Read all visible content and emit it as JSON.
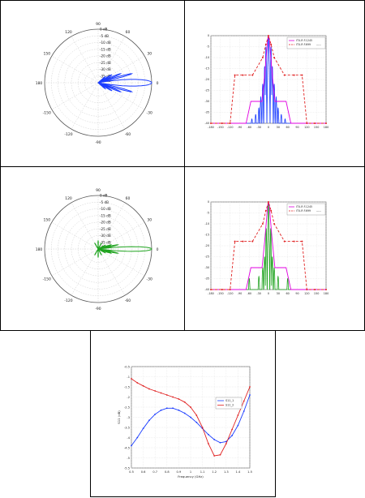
{
  "chart_data": [
    {
      "type": "polar",
      "color": "#1a3cff",
      "angle_labels": [
        "0",
        "30",
        "60",
        "90",
        "120",
        "150",
        "180",
        "-150",
        "-120",
        "-90",
        "-60",
        "-30"
      ],
      "radial_labels": [
        "0 dB",
        "-5 dB",
        "-10 dB",
        "-15 dB",
        "-20 dB",
        "-25 dB",
        "-30 dB",
        "-35 dB",
        "-40 dB"
      ],
      "rlim": [
        -40,
        0
      ],
      "pattern": {
        "main_lobe_halfwidth_deg": 10,
        "sidelobes": [
          {
            "angle": 15,
            "level": -14
          },
          {
            "angle": 22,
            "level": -22
          },
          {
            "angle": 30,
            "level": -28
          },
          {
            "angle": 40,
            "level": -33
          }
        ]
      }
    },
    {
      "type": "line",
      "color": "#1a3cff",
      "x_ticks": [
        "-180",
        "-150",
        "-120",
        "-90",
        "-60",
        "-30",
        "0",
        "30",
        "60",
        "90",
        "120",
        "150",
        "180"
      ],
      "y_ticks": [
        "0",
        "-5",
        "-10",
        "-15",
        "-20",
        "-25",
        "-30",
        "-35",
        "-40"
      ],
      "xlim": [
        -180,
        180
      ],
      "ylim": [
        -40,
        0
      ],
      "legend": [
        "ITU-R F.1245",
        "ITU-R F.699",
        "-----"
      ],
      "series": [
        {
          "name": "",
          "x": [
            -180,
            -70,
            -55,
            -20,
            -12,
            -6,
            -3,
            0,
            3,
            6,
            12,
            20,
            55,
            70,
            180
          ],
          "y": [
            -40,
            -40,
            -30,
            -30,
            -18,
            -8,
            -2,
            0,
            -2,
            -8,
            -18,
            -30,
            -30,
            -40,
            -40
          ]
        },
        {
          "name": "",
          "x": [
            -180,
            -145,
            -120,
            -105,
            -80,
            -50,
            -18,
            -8,
            0,
            8,
            18,
            50,
            80,
            105,
            120,
            145,
            180
          ],
          "y": [
            -40,
            -40,
            -40,
            -18,
            -18,
            -18,
            -10,
            -4,
            0,
            -4,
            -10,
            -18,
            -18,
            -18,
            -40,
            -40,
            -40
          ]
        }
      ],
      "pattern": {
        "main_halfwidth_deg": 5,
        "sidelobes": [
          {
            "x": 8,
            "level": -5
          },
          {
            "x": 12,
            "level": -14
          },
          {
            "x": 18,
            "level": -22
          },
          {
            "x": 24,
            "level": -28
          },
          {
            "x": 30,
            "level": -33
          },
          {
            "x": 40,
            "level": -36
          },
          {
            "x": 52,
            "level": -38
          }
        ]
      }
    },
    {
      "type": "polar",
      "color": "#1fa31f",
      "angle_labels": [
        "0",
        "30",
        "60",
        "90",
        "120",
        "150",
        "180",
        "-150",
        "-120",
        "-90",
        "-60",
        "-30"
      ],
      "radial_labels": [
        "0 dB",
        "-5 dB",
        "-10 dB",
        "-15 dB",
        "-20 dB",
        "-25 dB",
        "-30 dB",
        "-35 dB",
        "-40 dB"
      ],
      "rlim": [
        -40,
        0
      ],
      "pattern": {
        "main_lobe_halfwidth_deg": 7,
        "sidelobes": [
          {
            "angle": 12,
            "level": -25
          },
          {
            "angle": 18,
            "level": -30
          },
          {
            "angle": 28,
            "level": -34
          },
          {
            "angle": 60,
            "level": -35
          },
          {
            "angle": 90,
            "level": -34
          },
          {
            "angle": 120,
            "level": -35
          }
        ]
      }
    },
    {
      "type": "line",
      "color": "#1fa31f",
      "x_ticks": [
        "-180",
        "-150",
        "-120",
        "-90",
        "-60",
        "-30",
        "0",
        "30",
        "60",
        "90",
        "120",
        "150",
        "180"
      ],
      "y_ticks": [
        "0",
        "-5",
        "-10",
        "-15",
        "-20",
        "-25",
        "-30",
        "-35",
        "-40"
      ],
      "xlim": [
        -180,
        180
      ],
      "ylim": [
        -40,
        0
      ],
      "legend": [
        "ITU-R F.1245",
        "ITU-R F.699",
        "-----"
      ],
      "series": [
        {
          "name": "",
          "x": [
            -180,
            -70,
            -55,
            -20,
            -12,
            -6,
            -3,
            0,
            3,
            6,
            12,
            20,
            55,
            70,
            180
          ],
          "y": [
            -40,
            -40,
            -30,
            -30,
            -18,
            -8,
            -2,
            0,
            -2,
            -8,
            -18,
            -30,
            -30,
            -40,
            -40
          ]
        },
        {
          "name": "",
          "x": [
            -180,
            -145,
            -120,
            -105,
            -80,
            -50,
            -18,
            -8,
            0,
            8,
            18,
            50,
            80,
            105,
            120,
            145,
            180
          ],
          "y": [
            -40,
            -40,
            -40,
            -18,
            -18,
            -18,
            -10,
            -4,
            0,
            -4,
            -10,
            -18,
            -18,
            -18,
            -40,
            -40,
            -40
          ]
        }
      ],
      "pattern": {
        "main_halfwidth_deg": 4,
        "sidelobes": [
          {
            "x": 7,
            "level": -12
          },
          {
            "x": 12,
            "level": -25
          },
          {
            "x": 18,
            "level": -30
          },
          {
            "x": 30,
            "level": -34
          },
          {
            "x": 60,
            "level": -35
          },
          {
            "x": 100,
            "level": -36
          },
          {
            "x": 130,
            "level": -36
          }
        ]
      }
    },
    {
      "type": "line",
      "x_ticks": [
        "0.5",
        "0.6",
        "0.7",
        "0.8",
        "0.9",
        "1",
        "1.1",
        "1.2",
        "1.3",
        "1.4",
        "1.5"
      ],
      "y_ticks": [
        "-0.5",
        "-1",
        "-1.5",
        "-2",
        "-2.5",
        "-3",
        "-3.5",
        "-4",
        "-4.5",
        "-5",
        "-5.5"
      ],
      "xlim": [
        0.5,
        1.5
      ],
      "ylim": [
        -5.5,
        -0.5
      ],
      "xlabel": "Frequency (GHz)",
      "ylabel": "S11 (dB)",
      "legend": [
        "S11_1",
        "S11_2"
      ],
      "series": [
        {
          "name": "S11_1",
          "color": "#1a3cff",
          "x": [
            0.5,
            0.55,
            0.6,
            0.65,
            0.7,
            0.75,
            0.8,
            0.85,
            0.9,
            0.95,
            1.0,
            1.05,
            1.1,
            1.15,
            1.2,
            1.25,
            1.3,
            1.35,
            1.4,
            1.45,
            1.5
          ],
          "y": [
            -4.4,
            -4.0,
            -3.55,
            -3.15,
            -2.85,
            -2.65,
            -2.55,
            -2.55,
            -2.65,
            -2.8,
            -3.0,
            -3.25,
            -3.55,
            -3.85,
            -4.1,
            -4.25,
            -4.2,
            -3.9,
            -3.4,
            -2.7,
            -1.9
          ]
        },
        {
          "name": "S11_2",
          "color": "#e02020",
          "x": [
            0.5,
            0.55,
            0.6,
            0.65,
            0.7,
            0.75,
            0.8,
            0.85,
            0.9,
            0.95,
            1.0,
            1.05,
            1.1,
            1.15,
            1.2,
            1.25,
            1.3,
            1.35,
            1.4,
            1.45,
            1.5
          ],
          "y": [
            -1.1,
            -1.3,
            -1.45,
            -1.6,
            -1.7,
            -1.8,
            -1.9,
            -2.0,
            -2.1,
            -2.25,
            -2.5,
            -2.9,
            -3.5,
            -4.3,
            -4.9,
            -4.85,
            -4.3,
            -3.6,
            -2.9,
            -2.2,
            -1.5
          ]
        }
      ]
    }
  ]
}
